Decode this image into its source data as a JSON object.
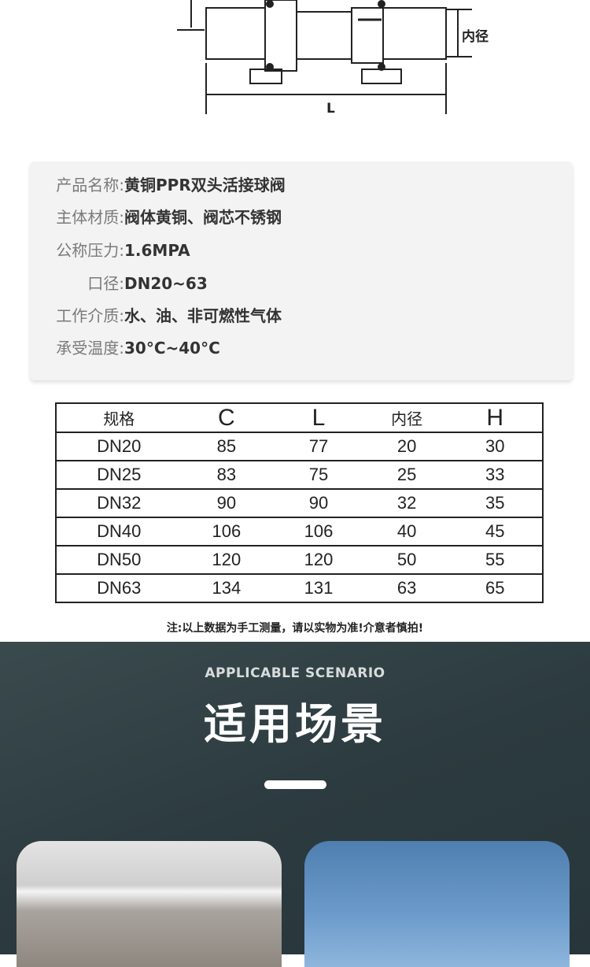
{
  "diagram": {
    "label_inner": "内径",
    "label_length": "L"
  },
  "spec": [
    {
      "label": "产品名称:",
      "value": "黄铜PPR双头活接球阀"
    },
    {
      "label": "主体材质:",
      "value": "阀体黄铜、阀芯不锈钢"
    },
    {
      "label": "公称压力:",
      "value": "1.6MPA"
    },
    {
      "label": "口径:",
      "value": "DN20~63"
    },
    {
      "label": "工作介质:",
      "value": "水、油、非可燃性气体"
    },
    {
      "label": "承受温度:",
      "value": "30°C~40°C"
    }
  ],
  "table": {
    "headers": [
      "规格",
      "C",
      "L",
      "内径",
      "H"
    ],
    "rows": [
      [
        "DN20",
        "85",
        "77",
        "20",
        "30"
      ],
      [
        "DN25",
        "83",
        "75",
        "25",
        "33"
      ],
      [
        "DN32",
        "90",
        "90",
        "32",
        "35"
      ],
      [
        "DN40",
        "106",
        "106",
        "40",
        "45"
      ],
      [
        "DN50",
        "120",
        "120",
        "50",
        "55"
      ],
      [
        "DN63",
        "134",
        "131",
        "63",
        "65"
      ]
    ]
  },
  "note": "注:以上数据为手工测量，请以实物为准!介意者慎拍!",
  "scenario": {
    "subtitle": "APPLICABLE SCENARIO",
    "title": "适用场景"
  }
}
